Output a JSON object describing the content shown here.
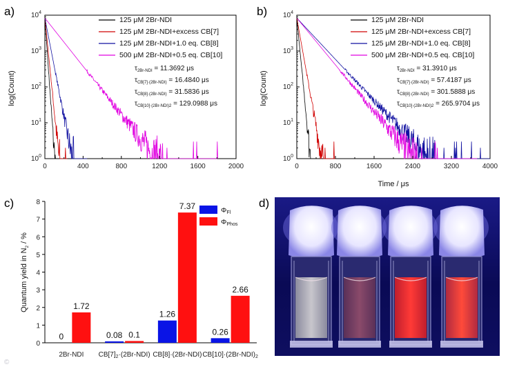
{
  "chart_data": [
    {
      "panel": "a)",
      "type": "line",
      "xlabel": "",
      "ylabel": "log(Count)",
      "xlim": [
        0,
        2000
      ],
      "x_ticks": [
        "0",
        "400",
        "800",
        "1200",
        "1600",
        "2000"
      ],
      "y_scale": "log",
      "y_ticks": [
        "10^0",
        "10^1",
        "10^2",
        "10^3",
        "10^4"
      ],
      "series": [
        {
          "name": "125 μM 2Br-NDI",
          "color": "#000000",
          "tau_label": "τ 2Br-NDI = 11.3692 μs",
          "tau_value": 11.3692
        },
        {
          "name": "125 μM 2Br-NDI+excess CB[7]",
          "color": "#d00000",
          "tau_label": "τ CB[7]·(2Br-NDI) = 16.4840 μs",
          "tau_value": 16.484
        },
        {
          "name": "125 μM 2Br-NDI+1.0 eq. CB[8]",
          "color": "#1010a0",
          "tau_label": "τ CB[8]·(2Br-NDI) = 31.5836 μs",
          "tau_value": 31.5836
        },
        {
          "name": "500 μM 2Br-NDI+0.5 eq. CB[10]",
          "color": "#e000e0",
          "tau_label": "τ CB[10]·(2Br-NDI)2 = 129.0988 μs",
          "tau_value": 129.0988
        }
      ]
    },
    {
      "panel": "b)",
      "type": "line",
      "xlabel": "Time / μs",
      "ylabel": "log(Count)",
      "xlim": [
        0,
        4000
      ],
      "x_ticks": [
        "0",
        "800",
        "1600",
        "2400",
        "3200",
        "4000"
      ],
      "y_scale": "log",
      "y_ticks": [
        "10^0",
        "10^1",
        "10^2",
        "10^3",
        "10^4"
      ],
      "series": [
        {
          "name": "125 μM 2Br-NDI",
          "color": "#000000",
          "tau_label": "τ 2Br-NDI = 31.3910 μs",
          "tau_value": 31.391
        },
        {
          "name": "125 μM 2Br-NDI+excess CB[7]",
          "color": "#d00000",
          "tau_label": "τ CB[7]·(2Br-NDI) = 57.4187 μs",
          "tau_value": 57.4187
        },
        {
          "name": "125 μM 2Br-NDI+1.0 eq. CB[8]",
          "color": "#1010a0",
          "tau_label": "τ CB[8]·(2Br-NDI) = 301.5888 μs",
          "tau_value": 301.5888
        },
        {
          "name": "500 μM 2Br-NDI+0.5 eq. CB[10]",
          "color": "#e000e0",
          "tau_label": "τ CB[10]·(2Br-NDI)2 = 265.9704 μs",
          "tau_value": 265.9704
        }
      ]
    },
    {
      "panel": "c)",
      "type": "bar",
      "ylabel": "Quantum yield in N2 / %",
      "ylim": [
        0,
        8
      ],
      "y_ticks": [
        "0",
        "1",
        "2",
        "3",
        "4",
        "5",
        "6",
        "7",
        "8"
      ],
      "categories": [
        "2Br-NDI",
        "CB[7]2·(2Br-NDI)",
        "CB[8]·(2Br-NDI)",
        "CB[10]·(2Br-NDI)2"
      ],
      "series": [
        {
          "name": "ΦFl",
          "color": "#0a14e6",
          "values": [
            0,
            0.08,
            1.26,
            0.26
          ],
          "labels": [
            "0",
            "0.08",
            "1.26",
            "0.26"
          ]
        },
        {
          "name": "ΦPhos",
          "color": "#ff1010",
          "values": [
            1.72,
            0.1,
            7.37,
            2.66
          ],
          "labels": [
            "1.72",
            "0.1",
            "7.37",
            "2.66"
          ]
        }
      ]
    }
  ],
  "panels": {
    "a": {
      "label": "a)",
      "ylabel": "log(Count)",
      "tau_prefix": "τ"
    },
    "b": {
      "label": "b)",
      "ylabel": "log(Count)",
      "xlabel": "Time / μs"
    },
    "c": {
      "label": "c)",
      "ylabel_main": "Quantum yield in N",
      "ylabel_sub": "2",
      "ylabel_end": " / %"
    },
    "d": {
      "label": "d)",
      "description_cuvettes": 4
    }
  },
  "tau_text": {
    "a": [
      {
        "sym": "τ",
        "sub": "2Br-NDI",
        "val": " = 11.3692 μs"
      },
      {
        "sym": "τ",
        "sub": "CB[7]·(2Br-NDI)",
        "val": " = 16.4840 μs"
      },
      {
        "sym": "τ",
        "sub": "CB[8]·(2Br-NDI)",
        "val": " = 31.5836 μs"
      },
      {
        "sym": "τ",
        "sub": "CB[10]·(2Br-NDI)2",
        "val": " = 129.0988 μs"
      }
    ],
    "b": [
      {
        "sym": "τ",
        "sub": "2Br-NDI",
        "val": " = 31.3910 μs"
      },
      {
        "sym": "τ",
        "sub": "CB[7]·(2Br-NDI)",
        "val": " = 57.4187 μs"
      },
      {
        "sym": "τ",
        "sub": "CB[8]·(2Br-NDI)",
        "val": " = 301.5888 μs"
      },
      {
        "sym": "τ",
        "sub": "CB[10]·(2Br-NDI)2",
        "val": " = 265.9704 μs"
      }
    ]
  },
  "legend_c": [
    {
      "sym": "Φ",
      "sub": "Fl",
      "color": "#0a14e6"
    },
    {
      "sym": "Φ",
      "sub": "Phos",
      "color": "#ff1010"
    }
  ],
  "bar_xlabels": [
    {
      "main": "2Br-NDI",
      "sub": "",
      "end": ""
    },
    {
      "main": "CB[7]",
      "sub": "2",
      "end": "·(2Br-NDI)"
    },
    {
      "main": "CB[8]·(2Br-NDI)",
      "sub": "",
      "end": ""
    },
    {
      "main": "CB[10]·(2Br-NDI)",
      "sub": "2",
      "end": ""
    }
  ],
  "colors": {
    "black": "#000000",
    "red": "#d00000",
    "blue": "#1010a0",
    "magenta": "#e000e0",
    "bar_blue": "#0a14e6",
    "bar_red": "#ff1010"
  }
}
